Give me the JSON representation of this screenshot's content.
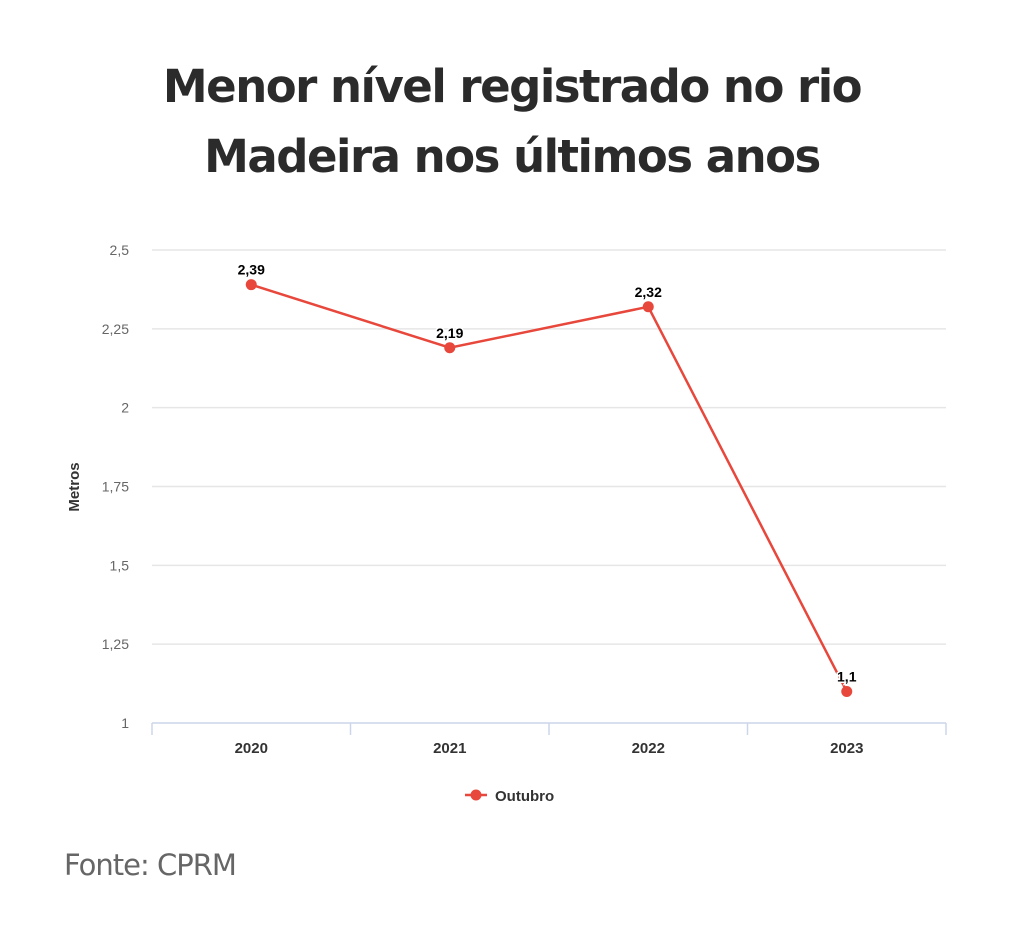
{
  "title_line1": "Menor nível registrado no rio",
  "title_line2": "Madeira nos últimos anos",
  "source": "Fonte: CPRM",
  "colors": {
    "series": "#e8473c",
    "grid": "#e6e6e6",
    "axis": "#ccd6eb"
  },
  "chart_data": {
    "type": "line",
    "title": "Menor nível registrado no rio Madeira nos últimos anos",
    "xlabel": "",
    "ylabel": "Metros",
    "categories": [
      "2020",
      "2021",
      "2022",
      "2023"
    ],
    "series": [
      {
        "name": "Outubro",
        "values": [
          2.39,
          2.19,
          2.32,
          1.1
        ],
        "labels": [
          "2,39",
          "2,19",
          "2,32",
          "1,1"
        ]
      }
    ],
    "ylim": [
      1,
      2.5
    ],
    "yticks": [
      1,
      1.25,
      1.5,
      1.75,
      2,
      2.25,
      2.5
    ],
    "ytick_labels": [
      "1",
      "1,25",
      "1,5",
      "1,75",
      "2",
      "2,25",
      "2,5"
    ],
    "grid": true,
    "legend": "bottom-center"
  }
}
